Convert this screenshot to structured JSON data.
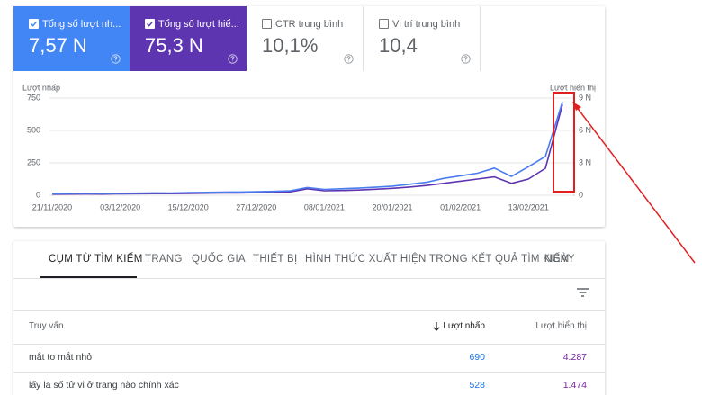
{
  "metrics": [
    {
      "label": "Tổng số lượt nh...",
      "value": "7,57 N"
    },
    {
      "label": "Tổng số lượt hiể...",
      "value": "75,3 N"
    },
    {
      "label": "CTR trung bình",
      "value": "10,1%"
    },
    {
      "label": "Vị trí trung bình",
      "value": "10,4"
    }
  ],
  "chart_data": {
    "type": "line",
    "categories": [
      "21/11/2020",
      null,
      null,
      null,
      "03/12/2020",
      null,
      null,
      null,
      "15/12/2020",
      null,
      null,
      null,
      "27/12/2020",
      null,
      null,
      null,
      "08/01/2021",
      null,
      null,
      null,
      "20/01/2021",
      null,
      null,
      null,
      "01/02/2021",
      null,
      null,
      null,
      "13/02/2021",
      null,
      null
    ],
    "series": [
      {
        "name": "Lượt nhấp",
        "color": "#4a7cf0",
        "values": [
          12,
          14,
          15,
          13,
          15,
          16,
          18,
          17,
          20,
          22,
          24,
          25,
          27,
          30,
          35,
          60,
          45,
          50,
          55,
          62,
          70,
          85,
          100,
          130,
          150,
          170,
          210,
          145,
          220,
          300,
          720
        ]
      },
      {
        "name": "Lượt hiển thị",
        "color": "#5e35b1",
        "axis": "y2",
        "values": [
          100,
          110,
          120,
          110,
          130,
          140,
          150,
          150,
          170,
          190,
          210,
          220,
          240,
          280,
          320,
          600,
          420,
          440,
          480,
          560,
          640,
          760,
          900,
          1100,
          1300,
          1500,
          1700,
          1100,
          1500,
          2500,
          8400
        ]
      }
    ],
    "ylim": [
      0,
      750
    ],
    "yticks": [
      0,
      250,
      500,
      750
    ],
    "y2lim": [
      0,
      9000
    ],
    "y2ticks": [
      0,
      {
        "value": 3000,
        "label": "3 N"
      },
      {
        "value": 6000,
        "label": "6 N"
      },
      {
        "value": 9000,
        "label": "9 N"
      }
    ],
    "grid": true
  },
  "tabs": [
    "CỤM TỪ TÌM KIẾM",
    "TRANG",
    "QUỐC GIA",
    "THIẾT BỊ",
    "HÌNH THỨC XUẤT HIỆN TRONG KẾT QUẢ TÌM KIẾM",
    "NGÀY"
  ],
  "table": {
    "columns": [
      "Truy vấn",
      "Lượt nhấp",
      "Lượt hiển thị"
    ],
    "rows": [
      [
        "mắt to mắt nhỏ",
        "690",
        "4.287"
      ],
      [
        "lấy la số tử vi ở trang nào chính xác",
        "528",
        "1.474"
      ]
    ]
  }
}
